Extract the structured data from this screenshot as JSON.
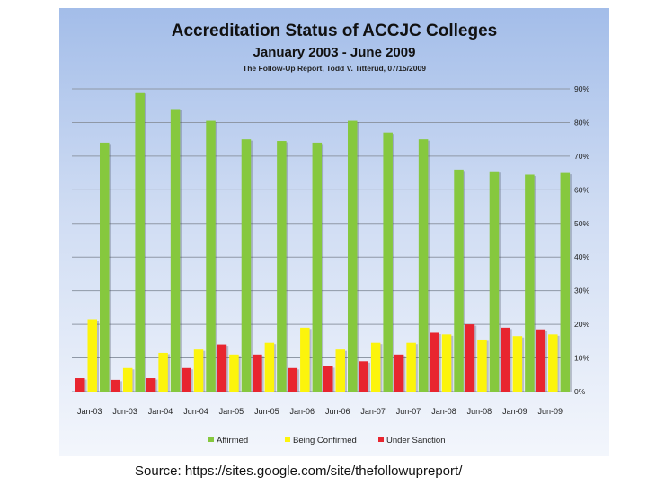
{
  "chart_data": {
    "type": "bar",
    "title": "Accreditation Status of ACCJC Colleges",
    "subtitle": "January 2003 - June 2009",
    "credit": "The Follow-Up Report, Todd V. Titterud, 07/15/2009",
    "categories": [
      "Jan-03",
      "Jun-03",
      "Jan-04",
      "Jun-04",
      "Jan-05",
      "Jun-05",
      "Jan-06",
      "Jun-06",
      "Jan-07",
      "Jun-07",
      "Jan-08",
      "Jun-08",
      "Jan-09",
      "Jun-09"
    ],
    "series": [
      {
        "name": "Under Sanction",
        "color": "#e8252f",
        "values": [
          4,
          3.5,
          4,
          7,
          14,
          11,
          7,
          7.5,
          9,
          11,
          17.5,
          20,
          19,
          18.5
        ]
      },
      {
        "name": "Being Confirmed",
        "color": "#fcf40c",
        "values": [
          21.5,
          7,
          11.5,
          12.5,
          11,
          14.5,
          19,
          12.5,
          14.5,
          14.5,
          17,
          15.5,
          16.5,
          17
        ]
      },
      {
        "name": "Affirmed",
        "color": "#86c83e",
        "values": [
          74,
          89,
          84,
          80.5,
          75,
          74.5,
          74,
          80.5,
          77,
          75,
          66,
          65.5,
          64.5,
          65
        ]
      }
    ],
    "legend_order": [
      "Affirmed",
      "Being Confirmed",
      "Under Sanction"
    ],
    "ylim": [
      0,
      90
    ],
    "y_ticks": [
      0,
      10,
      20,
      30,
      40,
      50,
      60,
      70,
      80,
      90
    ],
    "y_tick_labels": [
      "0%",
      "10%",
      "20%",
      "30%",
      "40%",
      "50%",
      "60%",
      "70%",
      "80%",
      "90%"
    ],
    "y_axis_side": "right",
    "grid": true,
    "legend_position": "bottom"
  },
  "source": "Source: https://sites.google.com/site/thefollowupreport/"
}
